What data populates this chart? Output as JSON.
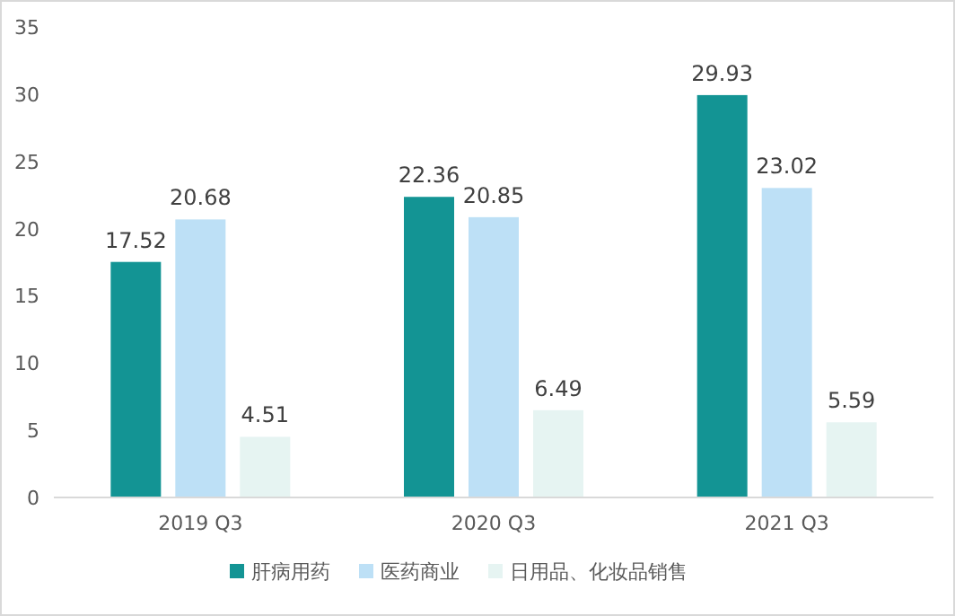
{
  "chart_data": {
    "type": "bar",
    "categories": [
      "2019 Q3",
      "2020 Q3",
      "2021 Q3"
    ],
    "series": [
      {
        "name": "肝病用药",
        "color": "#139494",
        "values": [
          17.52,
          22.36,
          29.93
        ]
      },
      {
        "name": "医药商业",
        "color": "#bde0f6",
        "values": [
          20.68,
          20.85,
          23.02
        ]
      },
      {
        "name": "日用品、化妆品销售",
        "color": "#e6f4f2",
        "values": [
          4.51,
          6.49,
          5.59
        ]
      }
    ],
    "ylim": [
      0,
      35
    ],
    "yticks": [
      0,
      5,
      10,
      15,
      20,
      25,
      30,
      35
    ],
    "data_labels": true,
    "grid": false,
    "legend": "bottom"
  }
}
